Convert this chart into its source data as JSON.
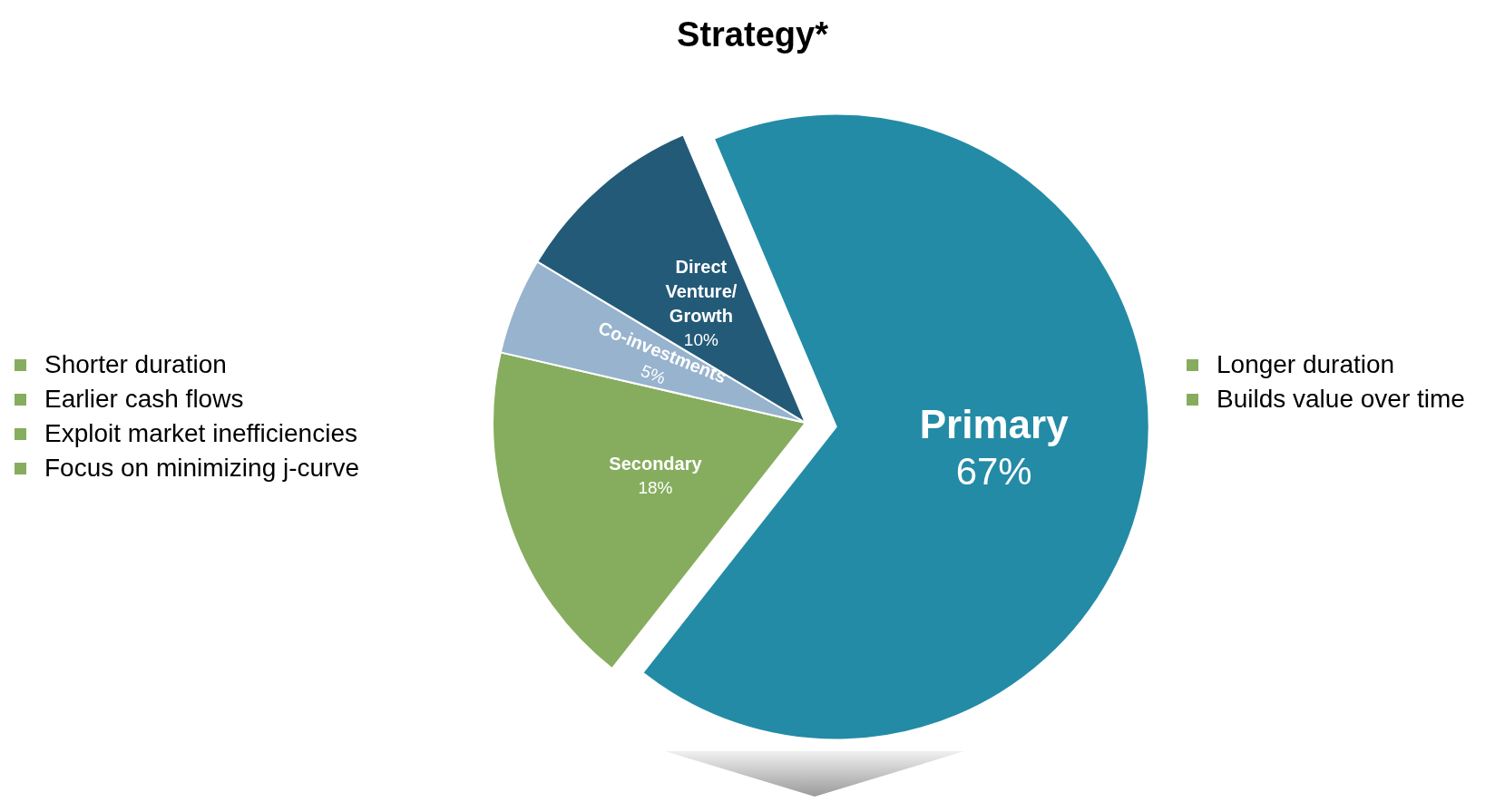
{
  "chart_data": {
    "type": "pie",
    "title": "Strategy*",
    "categories": [
      "Primary",
      "Secondary",
      "Co-investments",
      "Direct Venture/ Growth"
    ],
    "values": [
      67,
      18,
      5,
      10
    ],
    "colors": [
      "#238ba5",
      "#86ad5e",
      "#97b3cd",
      "#235a78"
    ],
    "value_labels": [
      "67%",
      "18%",
      "5%",
      "10%"
    ],
    "annotations": [
      "Shorter duration",
      "Earlier cash flows",
      "Exploit market inefficiencies",
      "Focus on minimizing j-curve",
      "Longer duration",
      "Builds value over time"
    ]
  }
}
